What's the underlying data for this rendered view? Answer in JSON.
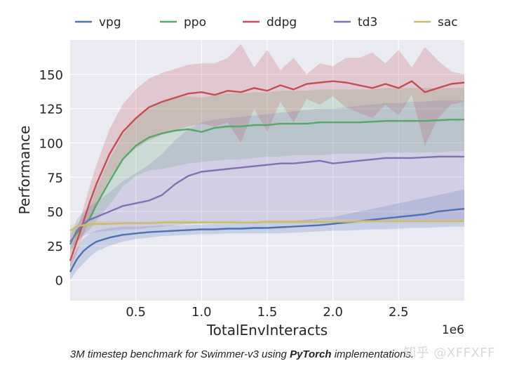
{
  "chart_data": {
    "type": "line",
    "xlabel": "TotalEnvInteracts",
    "ylabel": "Performance",
    "x_exponent": "1e6",
    "xlim": [
      0,
      3000000
    ],
    "ylim": [
      -15,
      175
    ],
    "x_ticks": [
      500000,
      1000000,
      1500000,
      2000000,
      2500000
    ],
    "x_tick_labels": [
      "0.5",
      "1.0",
      "1.5",
      "2.0",
      "2.5"
    ],
    "y_ticks": [
      0,
      25,
      50,
      75,
      100,
      125,
      150
    ],
    "y_tick_labels": [
      "0",
      "25",
      "50",
      "75",
      "100",
      "125",
      "150"
    ],
    "grid": true,
    "legend_position": "top",
    "x": [
      0,
      0.05,
      0.1,
      0.15,
      0.2,
      0.3,
      0.4,
      0.5,
      0.6,
      0.7,
      0.8,
      0.9,
      1.0,
      1.1,
      1.2,
      1.3,
      1.4,
      1.5,
      1.6,
      1.7,
      1.8,
      1.9,
      2.0,
      2.1,
      2.2,
      2.3,
      2.4,
      2.5,
      2.6,
      2.7,
      2.8,
      2.9,
      3.0
    ],
    "series": [
      {
        "name": "vpg",
        "color": "#4c72b0",
        "values": [
          6,
          15,
          21,
          25,
          28,
          31,
          33,
          34,
          35,
          35.5,
          36,
          36.5,
          37,
          37,
          37.5,
          37.5,
          38,
          38,
          38.5,
          39,
          39.5,
          40,
          41,
          42,
          43,
          44,
          45,
          46,
          47,
          48,
          50,
          51,
          52
        ],
        "lower": [
          0,
          7,
          12,
          17,
          21,
          25,
          28,
          30,
          31,
          32,
          32.5,
          33,
          33.5,
          33.5,
          34,
          34,
          34,
          34,
          34,
          34.5,
          35,
          35.5,
          36,
          36,
          36.5,
          37,
          37,
          37.5,
          38,
          38,
          38.5,
          39,
          39
        ],
        "upper": [
          12,
          23,
          30,
          34,
          36,
          38,
          39,
          39,
          39.5,
          40,
          40,
          40,
          40.5,
          41,
          41,
          41.5,
          42,
          42,
          42.5,
          43,
          44,
          45,
          46,
          48,
          50,
          52,
          54,
          56,
          58,
          60,
          62,
          64,
          66
        ]
      },
      {
        "name": "ppo",
        "color": "#55a868",
        "values": [
          28,
          34,
          40,
          45,
          55,
          72,
          88,
          98,
          104,
          107,
          109,
          110,
          108,
          111,
          112,
          112,
          113,
          113,
          114,
          114,
          114,
          115,
          115,
          115,
          115,
          115.5,
          116,
          116,
          116,
          116,
          116.5,
          117,
          117
        ],
        "lower": [
          22,
          28,
          33,
          37,
          43,
          55,
          68,
          76,
          80,
          81,
          83,
          85,
          86,
          87,
          88,
          88,
          89,
          90,
          90,
          91,
          91,
          91,
          92,
          92,
          92,
          92,
          93,
          93,
          93,
          93,
          93,
          94,
          94
        ],
        "upper": [
          34,
          40,
          47,
          54,
          67,
          88,
          106,
          118,
          126,
          130,
          133,
          134,
          133,
          135,
          136,
          136,
          137,
          137,
          138,
          138,
          138,
          139,
          139,
          139,
          139,
          139,
          140,
          140,
          140,
          140,
          140,
          140,
          140
        ]
      },
      {
        "name": "ddpg",
        "color": "#c44e52",
        "values": [
          14,
          28,
          42,
          57,
          70,
          92,
          108,
          118,
          126,
          130,
          133,
          136,
          137,
          135,
          138,
          137,
          140,
          138,
          142,
          139,
          143,
          144,
          145,
          144,
          142,
          140,
          143,
          140,
          145,
          137,
          140,
          143,
          144
        ],
        "lower": [
          8,
          20,
          32,
          45,
          56,
          74,
          88,
          96,
          102,
          106,
          109,
          112,
          114,
          112,
          115,
          100,
          125,
          108,
          130,
          115,
          132,
          128,
          134,
          126,
          122,
          118,
          128,
          120,
          135,
          98,
          118,
          128,
          130
        ],
        "upper": [
          20,
          36,
          52,
          69,
          84,
          110,
          128,
          139,
          147,
          151,
          154,
          157,
          158,
          158,
          162,
          172,
          155,
          168,
          153,
          162,
          150,
          158,
          156,
          162,
          162,
          166,
          158,
          168,
          155,
          170,
          160,
          152,
          150
        ]
      },
      {
        "name": "td3",
        "color": "#8172b2",
        "values": [
          26,
          36,
          41,
          44,
          46,
          50,
          54,
          56,
          58,
          62,
          70,
          76,
          79,
          80,
          81,
          82,
          83,
          84,
          85,
          85,
          86,
          87,
          85,
          86,
          87,
          88,
          89,
          89,
          89,
          89.5,
          90,
          90,
          90
        ],
        "lower": [
          20,
          28,
          32,
          34,
          35,
          36,
          37,
          37,
          38,
          39,
          40,
          41,
          42,
          42,
          42,
          43,
          43,
          43,
          43,
          43,
          43,
          44,
          44,
          44,
          44,
          44,
          44,
          44,
          44,
          44,
          44,
          44,
          44
        ],
        "upper": [
          32,
          44,
          50,
          54,
          57,
          64,
          72,
          78,
          84,
          92,
          102,
          110,
          115,
          117,
          118,
          119,
          120,
          121,
          122,
          123,
          124,
          125,
          125,
          126,
          127,
          128,
          129,
          129,
          130,
          130,
          131,
          131,
          131
        ]
      },
      {
        "name": "sac",
        "color": "#ccb974",
        "values": [
          36,
          39,
          40,
          40.5,
          41,
          41,
          41.5,
          41.5,
          41.5,
          42,
          42,
          42,
          42,
          42,
          42,
          42,
          42,
          42.5,
          42.5,
          42.5,
          42.5,
          42.5,
          42.5,
          42.5,
          43,
          43,
          43,
          43,
          43,
          43,
          43,
          43,
          43
        ],
        "lower": [
          32,
          36,
          38,
          39,
          39.5,
          40,
          40,
          40,
          40.5,
          40.5,
          40.5,
          40.5,
          41,
          41,
          41,
          41,
          41,
          41,
          41,
          41,
          41,
          41,
          41,
          41,
          41.5,
          41.5,
          41.5,
          41.5,
          41.5,
          41.5,
          41.5,
          41.5,
          41.5
        ],
        "upper": [
          40,
          42,
          42.5,
          43,
          43,
          43,
          43,
          43,
          43,
          43.5,
          43.5,
          43.5,
          43.5,
          43.5,
          43.5,
          43.5,
          43.5,
          44,
          44,
          44,
          44,
          44,
          44,
          44,
          44.5,
          44.5,
          44.5,
          44.5,
          44.5,
          44.5,
          44.5,
          44.5,
          44.5
        ]
      }
    ]
  },
  "caption": {
    "prefix": "3M timestep benchmark for Swimmer-v3 using ",
    "bold": "PyTorch",
    "suffix": " implementations."
  },
  "watermark": "知乎 @XFFXFF"
}
